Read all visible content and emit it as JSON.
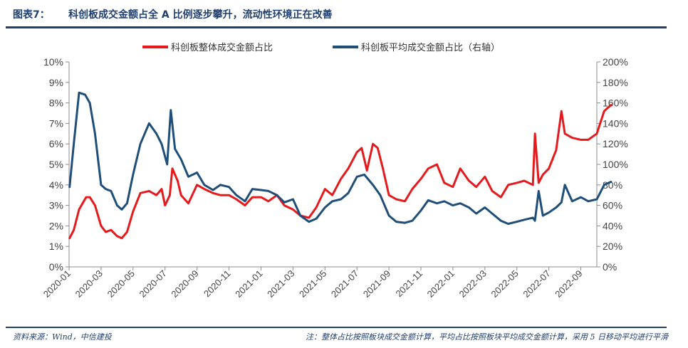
{
  "header": {
    "figure_label": "图表7：",
    "title": "科创板成交金额占全 A 比例逐步攀升，流动性环境正在改善"
  },
  "footer": {
    "source": "资料来源：Wind，中信建投",
    "note": "注：整体占比按照板块成交金额计算，平均占比按照板块平均成交金额计算，采用 5 日移动平均进行平滑"
  },
  "colors": {
    "series_left": "#e41a1c",
    "series_right": "#1f4e79",
    "accent": "#1f3f6e"
  },
  "chart_data": {
    "type": "line",
    "title": "",
    "xlabel": "",
    "ylabel": "",
    "legend_position": "top",
    "grid": false,
    "xlim": [
      "2020-01",
      "2022-10"
    ],
    "x_ticks": [
      "2020-01",
      "2020-03",
      "2020-05",
      "2020-07",
      "2020-09",
      "2020-11",
      "2021-01",
      "2021-03",
      "2021-05",
      "2021-07",
      "2021-09",
      "2021-11",
      "2022-01",
      "2022-03",
      "2022-05",
      "2022-07",
      "2022-09"
    ],
    "y_left": {
      "ylim": [
        0,
        10
      ],
      "ticks": [
        "0%",
        "1%",
        "2%",
        "3%",
        "4%",
        "5%",
        "6%",
        "7%",
        "8%",
        "9%",
        "10%"
      ]
    },
    "y_right": {
      "ylim": [
        0,
        200
      ],
      "ticks": [
        "0%",
        "20%",
        "40%",
        "60%",
        "80%",
        "100%",
        "120%",
        "140%",
        "160%",
        "180%",
        "200%"
      ]
    },
    "series": [
      {
        "name": "科创板整体成交金额占比",
        "axis": "left",
        "x": [
          "2020-01-02",
          "2020-01-10",
          "2020-01-20",
          "2020-02-03",
          "2020-02-10",
          "2020-02-20",
          "2020-03-01",
          "2020-03-10",
          "2020-03-20",
          "2020-04-01",
          "2020-04-10",
          "2020-04-20",
          "2020-05-01",
          "2020-05-15",
          "2020-06-01",
          "2020-06-15",
          "2020-06-25",
          "2020-07-01",
          "2020-07-10",
          "2020-07-15",
          "2020-07-25",
          "2020-08-01",
          "2020-08-15",
          "2020-09-01",
          "2020-09-15",
          "2020-10-01",
          "2020-10-15",
          "2020-11-01",
          "2020-11-15",
          "2020-12-01",
          "2020-12-15",
          "2021-01-01",
          "2021-01-15",
          "2021-02-01",
          "2021-02-15",
          "2021-03-01",
          "2021-03-15",
          "2021-04-01",
          "2021-04-15",
          "2021-05-01",
          "2021-05-15",
          "2021-06-01",
          "2021-06-15",
          "2021-07-01",
          "2021-07-10",
          "2021-07-20",
          "2021-08-01",
          "2021-08-10",
          "2021-08-20",
          "2021-09-01",
          "2021-09-15",
          "2021-10-01",
          "2021-10-15",
          "2021-11-01",
          "2021-11-15",
          "2021-12-01",
          "2021-12-15",
          "2022-01-01",
          "2022-01-15",
          "2022-02-01",
          "2022-02-15",
          "2022-03-01",
          "2022-03-15",
          "2022-04-01",
          "2022-04-15",
          "2022-05-01",
          "2022-05-15",
          "2022-06-01",
          "2022-06-05",
          "2022-06-12",
          "2022-06-20",
          "2022-07-01",
          "2022-07-15",
          "2022-07-25",
          "2022-08-01",
          "2022-08-15",
          "2022-09-01",
          "2022-09-15",
          "2022-10-01",
          "2022-10-15",
          "2022-10-28"
        ],
        "values": [
          1.4,
          1.8,
          2.8,
          3.4,
          3.4,
          3.0,
          2.0,
          1.7,
          1.8,
          1.5,
          1.4,
          1.7,
          2.7,
          3.6,
          3.7,
          3.5,
          3.8,
          3.0,
          3.5,
          4.8,
          4.2,
          3.5,
          3.1,
          4.0,
          3.8,
          3.6,
          3.5,
          3.5,
          3.3,
          3.0,
          3.4,
          3.4,
          3.2,
          3.5,
          3.0,
          2.8,
          2.5,
          2.4,
          2.9,
          3.8,
          3.5,
          4.3,
          4.8,
          5.6,
          5.8,
          4.7,
          6.0,
          5.8,
          4.8,
          3.5,
          3.3,
          3.2,
          3.8,
          4.3,
          4.8,
          5.0,
          4.1,
          3.9,
          4.8,
          4.2,
          3.9,
          4.4,
          3.7,
          3.4,
          4.0,
          4.1,
          4.2,
          4.0,
          6.5,
          4.1,
          4.5,
          4.8,
          5.7,
          7.6,
          6.5,
          6.3,
          6.2,
          6.2,
          6.5,
          7.6,
          7.9
        ]
      },
      {
        "name": "科创板平均成交金额占比（右轴）",
        "axis": "right",
        "x": [
          "2020-01-02",
          "2020-01-10",
          "2020-01-20",
          "2020-02-01",
          "2020-02-10",
          "2020-02-20",
          "2020-03-01",
          "2020-03-10",
          "2020-03-20",
          "2020-04-01",
          "2020-04-10",
          "2020-04-20",
          "2020-05-01",
          "2020-05-15",
          "2020-06-01",
          "2020-06-15",
          "2020-06-25",
          "2020-07-05",
          "2020-07-12",
          "2020-07-20",
          "2020-08-01",
          "2020-08-15",
          "2020-09-01",
          "2020-09-15",
          "2020-10-01",
          "2020-10-15",
          "2020-11-01",
          "2020-11-15",
          "2020-12-01",
          "2020-12-15",
          "2021-01-01",
          "2021-01-15",
          "2021-02-01",
          "2021-02-15",
          "2021-03-01",
          "2021-03-15",
          "2021-04-01",
          "2021-04-15",
          "2021-05-01",
          "2021-05-15",
          "2021-06-01",
          "2021-06-15",
          "2021-07-01",
          "2021-07-15",
          "2021-08-01",
          "2021-08-15",
          "2021-09-01",
          "2021-09-15",
          "2021-10-01",
          "2021-10-15",
          "2021-11-01",
          "2021-11-15",
          "2021-12-01",
          "2021-12-15",
          "2022-01-01",
          "2022-01-15",
          "2022-02-01",
          "2022-02-15",
          "2022-03-01",
          "2022-03-15",
          "2022-04-01",
          "2022-04-15",
          "2022-05-01",
          "2022-05-15",
          "2022-06-01",
          "2022-06-05",
          "2022-06-12",
          "2022-06-20",
          "2022-07-01",
          "2022-07-15",
          "2022-07-25",
          "2022-08-01",
          "2022-08-15",
          "2022-09-01",
          "2022-09-15",
          "2022-10-01",
          "2022-10-15",
          "2022-10-28"
        ],
        "values": [
          78,
          120,
          170,
          168,
          160,
          130,
          80,
          76,
          74,
          60,
          56,
          62,
          90,
          120,
          140,
          130,
          120,
          100,
          153,
          115,
          105,
          88,
          92,
          80,
          75,
          80,
          78,
          70,
          64,
          76,
          75,
          74,
          70,
          63,
          66,
          50,
          44,
          47,
          58,
          64,
          66,
          72,
          88,
          90,
          80,
          70,
          50,
          44,
          43,
          45,
          55,
          65,
          62,
          64,
          60,
          62,
          58,
          52,
          58,
          52,
          45,
          42,
          44,
          46,
          48,
          45,
          74,
          50,
          53,
          58,
          63,
          80,
          64,
          68,
          64,
          66,
          80,
          83
        ]
      }
    ]
  }
}
